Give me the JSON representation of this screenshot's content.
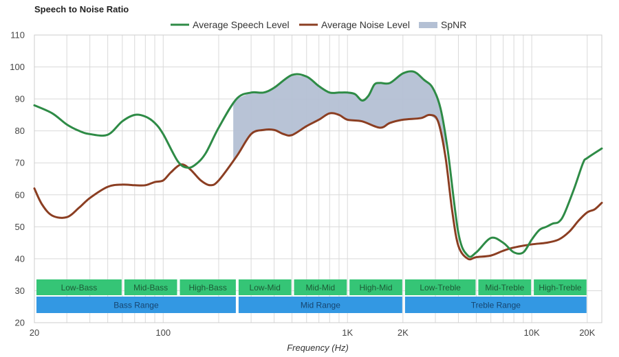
{
  "chart_data": {
    "type": "line",
    "title": "Speech to Noise Ratio",
    "xlabel": "Frequency (Hz)",
    "ylabel": "",
    "x_scale": "log",
    "xlim": [
      20,
      24000
    ],
    "ylim": [
      20,
      110
    ],
    "grid": true,
    "legend_position": "top-center",
    "x_tick_labels": [
      {
        "value": 20,
        "label": "20"
      },
      {
        "value": 100,
        "label": "100"
      },
      {
        "value": 1000,
        "label": "1K"
      },
      {
        "value": 2000,
        "label": "2K"
      },
      {
        "value": 10000,
        "label": "10K"
      },
      {
        "value": 20000,
        "label": "20K"
      }
    ],
    "y_ticks": [
      20,
      30,
      40,
      50,
      60,
      70,
      80,
      90,
      100,
      110
    ],
    "series": [
      {
        "name": "Average Speech Level",
        "color": "#2e8b46",
        "points": [
          [
            20,
            88
          ],
          [
            25,
            85.5
          ],
          [
            30,
            82
          ],
          [
            35,
            80
          ],
          [
            40,
            79
          ],
          [
            50,
            78.8
          ],
          [
            60,
            83
          ],
          [
            70,
            85
          ],
          [
            80,
            84.5
          ],
          [
            90,
            82.5
          ],
          [
            100,
            79
          ],
          [
            120,
            70.5
          ],
          [
            135,
            68.5
          ],
          [
            150,
            69.5
          ],
          [
            170,
            73
          ],
          [
            200,
            81
          ],
          [
            250,
            90
          ],
          [
            300,
            92
          ],
          [
            350,
            92
          ],
          [
            400,
            93.5
          ],
          [
            500,
            97.5
          ],
          [
            600,
            97
          ],
          [
            700,
            94
          ],
          [
            800,
            92
          ],
          [
            900,
            92
          ],
          [
            1000,
            92
          ],
          [
            1100,
            91.5
          ],
          [
            1200,
            89.5
          ],
          [
            1300,
            91
          ],
          [
            1400,
            94.5
          ],
          [
            1500,
            95
          ],
          [
            1700,
            95
          ],
          [
            2000,
            98
          ],
          [
            2300,
            98.5
          ],
          [
            2600,
            96
          ],
          [
            2900,
            93.5
          ],
          [
            3200,
            87
          ],
          [
            3500,
            74
          ],
          [
            4000,
            48
          ],
          [
            4500,
            41
          ],
          [
            5000,
            42
          ],
          [
            6000,
            46.5
          ],
          [
            7000,
            45
          ],
          [
            8000,
            42
          ],
          [
            9000,
            42
          ],
          [
            10000,
            46
          ],
          [
            11000,
            49
          ],
          [
            12000,
            50
          ],
          [
            13000,
            51
          ],
          [
            14000,
            51.5
          ],
          [
            15000,
            54
          ],
          [
            17000,
            62
          ],
          [
            19000,
            70
          ],
          [
            20000,
            71.5
          ],
          [
            24000,
            74.5
          ]
        ]
      },
      {
        "name": "Average Noise Level",
        "color": "#8b3e22",
        "points": [
          [
            20,
            62
          ],
          [
            22,
            57
          ],
          [
            25,
            53.5
          ],
          [
            30,
            53
          ],
          [
            35,
            56
          ],
          [
            40,
            59
          ],
          [
            50,
            62.5
          ],
          [
            60,
            63.2
          ],
          [
            70,
            63
          ],
          [
            80,
            63
          ],
          [
            90,
            64
          ],
          [
            100,
            64.5
          ],
          [
            110,
            67
          ],
          [
            125,
            69.5
          ],
          [
            140,
            68
          ],
          [
            160,
            64.5
          ],
          [
            180,
            63
          ],
          [
            200,
            64.5
          ],
          [
            250,
            72
          ],
          [
            300,
            79
          ],
          [
            350,
            80.3
          ],
          [
            400,
            80.3
          ],
          [
            450,
            79
          ],
          [
            500,
            78.7
          ],
          [
            600,
            81.5
          ],
          [
            700,
            83.5
          ],
          [
            800,
            85.5
          ],
          [
            900,
            85
          ],
          [
            1000,
            83.5
          ],
          [
            1200,
            83
          ],
          [
            1500,
            81
          ],
          [
            1700,
            82.5
          ],
          [
            2000,
            83.5
          ],
          [
            2500,
            84
          ],
          [
            2800,
            85
          ],
          [
            3100,
            83
          ],
          [
            3400,
            72
          ],
          [
            3700,
            55
          ],
          [
            4000,
            44
          ],
          [
            4500,
            40
          ],
          [
            5000,
            40.5
          ],
          [
            6000,
            41
          ],
          [
            7000,
            42.5
          ],
          [
            8000,
            43.5
          ],
          [
            10000,
            44.5
          ],
          [
            12000,
            45
          ],
          [
            14000,
            46
          ],
          [
            16000,
            48.5
          ],
          [
            18000,
            52
          ],
          [
            20000,
            54.5
          ],
          [
            22000,
            55.5
          ],
          [
            24000,
            57.5
          ]
        ]
      },
      {
        "name": "SpNR",
        "color": "#b4c0d4",
        "type": "area",
        "x_range": [
          240,
          3400
        ]
      }
    ],
    "ranges": [
      {
        "row": "sub",
        "label": "Low-Bass",
        "from": 20,
        "to": 60
      },
      {
        "row": "sub",
        "label": "Mid-Bass",
        "from": 60,
        "to": 120
      },
      {
        "row": "sub",
        "label": "High-Bass",
        "from": 120,
        "to": 250
      },
      {
        "row": "sub",
        "label": "Low-Mid",
        "from": 250,
        "to": 500
      },
      {
        "row": "sub",
        "label": "Mid-Mid",
        "from": 500,
        "to": 1000
      },
      {
        "row": "sub",
        "label": "High-Mid",
        "from": 1000,
        "to": 2000
      },
      {
        "row": "sub",
        "label": "Low-Treble",
        "from": 2000,
        "to": 5000
      },
      {
        "row": "sub",
        "label": "Mid-Treble",
        "from": 5000,
        "to": 10000
      },
      {
        "row": "sub",
        "label": "High-Treble",
        "from": 10000,
        "to": 20000
      },
      {
        "row": "main",
        "label": "Bass Range",
        "from": 20,
        "to": 250
      },
      {
        "row": "main",
        "label": "Mid Range",
        "from": 250,
        "to": 2000
      },
      {
        "row": "main",
        "label": "Treble Range",
        "from": 2000,
        "to": 20000
      }
    ],
    "range_colors": {
      "sub": "#35c576",
      "main": "#3398e3"
    }
  }
}
